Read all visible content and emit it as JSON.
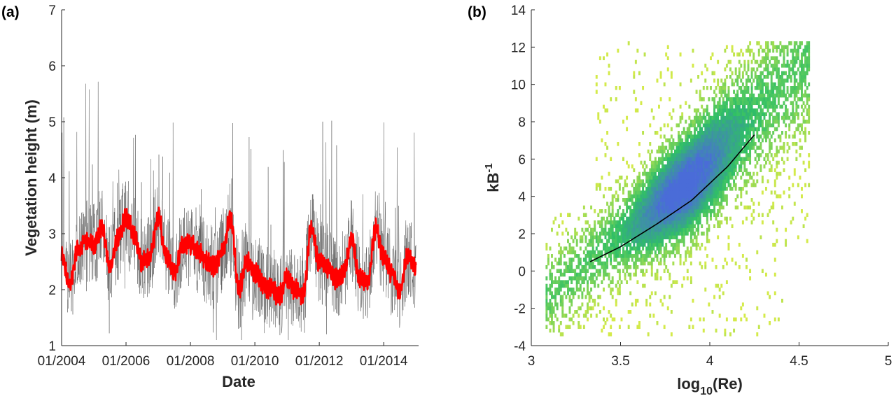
{
  "chart_data": [
    {
      "type": "line",
      "panel_label": "(a)",
      "xlabel": "Date",
      "ylabel": "Vegetation height (m)",
      "xlim": [
        "2004-01-01",
        "2015-02-01"
      ],
      "ylim": [
        1,
        7
      ],
      "xticks": [
        "01/2004",
        "01/2006",
        "01/2008",
        "01/2010",
        "01/2012",
        "01/2014"
      ],
      "yticks": [
        1,
        2,
        3,
        4,
        5,
        6,
        7
      ],
      "colors": {
        "raw": "#555555",
        "smoothed": "#ff0000"
      },
      "series": [
        {
          "x": [
            "2004-01",
            "2004-04",
            "2004-07",
            "2004-10",
            "2005-01",
            "2005-04",
            "2005-07",
            "2005-10",
            "2006-01",
            "2006-04",
            "2006-07",
            "2006-10",
            "2007-01",
            "2007-04",
            "2007-07",
            "2007-10",
            "2008-01",
            "2008-04",
            "2008-07",
            "2008-10",
            "2009-01",
            "2009-04",
            "2009-07",
            "2009-10",
            "2010-01",
            "2010-04",
            "2010-07",
            "2010-10",
            "2011-01",
            "2011-04",
            "2011-07",
            "2011-10",
            "2012-01",
            "2012-04",
            "2012-07",
            "2012-10",
            "2013-01",
            "2013-04",
            "2013-07",
            "2013-10",
            "2014-01",
            "2014-04",
            "2014-07",
            "2014-10",
            "2015-01"
          ],
          "values": [
            2.6,
            2.1,
            2.7,
            2.9,
            2.8,
            3.1,
            2.4,
            2.9,
            3.3,
            3.0,
            2.5,
            2.6,
            3.3,
            2.6,
            2.3,
            2.8,
            2.8,
            2.7,
            2.5,
            2.4,
            2.7,
            3.3,
            2.0,
            2.5,
            2.3,
            2.1,
            2.0,
            1.9,
            2.2,
            2.0,
            1.9,
            3.1,
            2.5,
            2.4,
            2.2,
            2.3,
            2.9,
            2.2,
            2.1,
            3.1,
            2.6,
            2.3,
            2.0,
            2.6,
            2.4
          ]
        }
      ]
    },
    {
      "type": "heatmap",
      "panel_label": "(b)",
      "xlabel": "log",
      "xlabel_sub": "10",
      "xlabel_tail": "(Re)",
      "ylabel": "kB",
      "ylabel_sup": "-1",
      "xlim": [
        3,
        5
      ],
      "ylim": [
        -4,
        14
      ],
      "xticks": [
        "3",
        "3.5",
        "4",
        "4.5",
        "5"
      ],
      "yticks": [
        "-4",
        "-2",
        "0",
        "2",
        "4",
        "6",
        "8",
        "10",
        "12",
        "14"
      ],
      "colors": {
        "low": "#d4ea4a",
        "mid": "#2fbf66",
        "high": "#4a6cd8",
        "fit": "#000000"
      },
      "fit_curve": {
        "x": [
          3.33,
          3.5,
          3.7,
          3.9,
          4.1,
          4.25
        ],
        "y": [
          0.5,
          1.3,
          2.5,
          3.8,
          5.6,
          7.3
        ]
      }
    }
  ]
}
